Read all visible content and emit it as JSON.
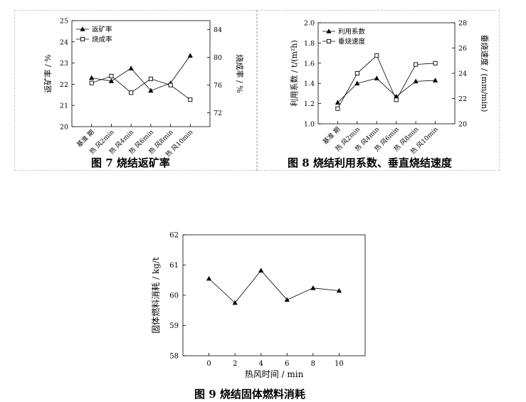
{
  "figures": {
    "fig7": {
      "caption": "图 7  烧结返矿率"
    },
    "fig8": {
      "caption": "图 8  烧结利用系数、垂直烧结速度"
    },
    "fig9": {
      "caption": "图 9  烧结固体燃料消耗"
    }
  },
  "chart_data": [
    {
      "id": "fig7",
      "type": "line",
      "categories": [
        "基准 期",
        "热 风2min",
        "热 风4min",
        "热 风6min",
        "热 风8min",
        "热 风10min"
      ],
      "ylabel": "返矿率 / %",
      "y2label": "烧成率 / %",
      "ylim": [
        20,
        25
      ],
      "yticks": [
        20,
        21,
        22,
        23,
        24,
        25
      ],
      "y2lim": [
        70,
        85.3
      ],
      "y2ticks": [
        72,
        76,
        80,
        84
      ],
      "legend_position": "top-left",
      "series": [
        {
          "name": "返矿率",
          "axis": "left",
          "marker": "triangle",
          "values": [
            22.3,
            22.15,
            22.75,
            21.7,
            22.05,
            23.35
          ]
        },
        {
          "name": "烧成率",
          "axis": "right",
          "marker": "square",
          "values": [
            76.3,
            77.3,
            74.9,
            76.9,
            76.0,
            73.9
          ]
        }
      ]
    },
    {
      "id": "fig8",
      "type": "line",
      "categories": [
        "基准 期",
        "热 风2min",
        "热 风4min",
        "热 风6min",
        "热 风8min",
        "热 风10min"
      ],
      "ylabel": "利用系数 / t/(m²h)",
      "y2label": "垂烧速度 / (mm/min)",
      "ylim": [
        1.0,
        2.0
      ],
      "yticks": [
        1.0,
        1.2,
        1.4,
        1.6,
        1.8,
        2.0
      ],
      "y2lim": [
        20,
        28
      ],
      "y2ticks": [
        20,
        22,
        24,
        26,
        28
      ],
      "legend_position": "top-left",
      "series": [
        {
          "name": "利用系数",
          "axis": "left",
          "marker": "triangle",
          "values": [
            1.21,
            1.4,
            1.45,
            1.27,
            1.42,
            1.43
          ]
        },
        {
          "name": "垂烧速度",
          "axis": "right",
          "marker": "square",
          "values": [
            21.2,
            24.0,
            25.4,
            21.9,
            24.7,
            24.8
          ]
        }
      ]
    },
    {
      "id": "fig9",
      "type": "line",
      "x": [
        0,
        2,
        4,
        6,
        8,
        10
      ],
      "xlim": [
        -2,
        12
      ],
      "xticks": [
        0,
        2,
        4,
        6,
        8,
        10
      ],
      "xlabel": "热风时间 / min",
      "ylabel": "固体燃料消耗 / kg/t",
      "ylim": [
        58,
        62
      ],
      "yticks": [
        58,
        59,
        60,
        61,
        62
      ],
      "series": [
        {
          "axis": "left",
          "marker": "triangle",
          "values": [
            60.55,
            59.75,
            60.82,
            59.85,
            60.24,
            60.15
          ]
        }
      ]
    }
  ]
}
